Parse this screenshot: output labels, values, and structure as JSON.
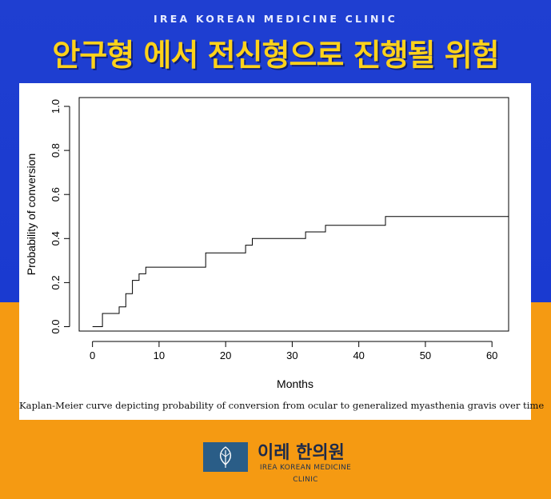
{
  "header": {
    "clinic_name": "IREA KOREAN MEDICINE CLINIC",
    "headline": "안구형 에서 전신형으로 진행될 위험"
  },
  "caption": "Kaplan-Meier curve depicting probability of conversion from ocular to generalized myasthenia gravis over time",
  "logo": {
    "icon": "leaf-icon",
    "name_ko": "이레 한의원",
    "name_en_line1": "IREA KOREAN MEDICINE",
    "name_en_line2": "CLINIC",
    "color": "#2a5d87"
  },
  "chart_data": {
    "type": "line",
    "step": true,
    "xlabel": "Months",
    "ylabel": "Probability of conversion",
    "xlim": [
      -2,
      62.5
    ],
    "ylim": [
      -0.02,
      1.04
    ],
    "x_ticks": [
      0,
      10,
      20,
      30,
      40,
      50,
      60
    ],
    "y_ticks": [
      0.0,
      0.2,
      0.4,
      0.6,
      0.8,
      1.0
    ],
    "x_tick_labels": [
      "0",
      "10",
      "20",
      "30",
      "40",
      "50",
      "60"
    ],
    "y_tick_labels": [
      "0.0",
      "0.2",
      "0.4",
      "0.6",
      "0.8",
      "1.0"
    ],
    "grid": false,
    "legend": "none",
    "series": [
      {
        "x": [
          0,
          1.5,
          1.5,
          4,
          4,
          5,
          5,
          6,
          6,
          7,
          7,
          8,
          8,
          17,
          17,
          23,
          23,
          24,
          24,
          32,
          32,
          35,
          35,
          44,
          44,
          62.5
        ],
        "y": [
          0.0,
          0.0,
          0.06,
          0.06,
          0.09,
          0.09,
          0.15,
          0.15,
          0.21,
          0.21,
          0.24,
          0.24,
          0.27,
          0.27,
          0.335,
          0.335,
          0.37,
          0.37,
          0.4,
          0.4,
          0.43,
          0.43,
          0.46,
          0.46,
          0.5,
          0.5
        ]
      }
    ]
  }
}
